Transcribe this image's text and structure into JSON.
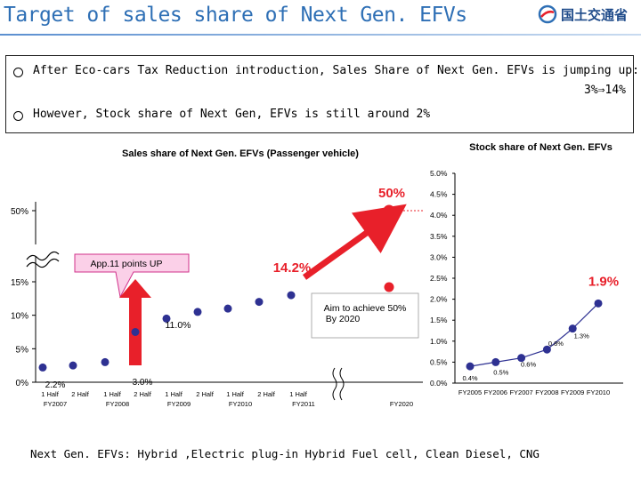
{
  "header": {
    "title": "Target of sales share of Next Gen. EFVs",
    "logo_text": "国土交通省"
  },
  "info": {
    "line1": "After Eco-cars Tax Reduction introduction, Sales Share of Next Gen. EFVs is jumping up:",
    "line1_value": "3%⇒14%",
    "line2": "However, Stock share of Next Gen, EFVs is still around 2%"
  },
  "chart_data": [
    {
      "type": "scatter",
      "title": "Sales share of Next Gen. EFVs (Passenger vehicle)",
      "ylabel": "",
      "y_ticks": [
        "0%",
        "5%",
        "10%",
        "15%",
        "50%"
      ],
      "x_ticks": [
        {
          "half": "1 Half",
          "fy": "FY2007"
        },
        {
          "half": "2 Half",
          "fy": ""
        },
        {
          "half": "1 Half",
          "fy": "FY2008"
        },
        {
          "half": "2 Half",
          "fy": ""
        },
        {
          "half": "1 Half",
          "fy": "FY2009"
        },
        {
          "half": "2 Half",
          "fy": ""
        },
        {
          "half": "1 Half",
          "fy": "FY2010"
        },
        {
          "half": "2 Half",
          "fy": ""
        },
        {
          "half": "1 Half",
          "fy": "FY2011"
        },
        {
          "half": "",
          "fy": "FY2020"
        }
      ],
      "points": [
        2.2,
        2.5,
        3.0,
        7.5,
        9.5,
        10.5,
        11.0,
        12.0,
        13.0,
        14.2
      ],
      "target": 50,
      "labels": {
        "p_first": "2.2%",
        "p_third": "3.0%",
        "p_mid": "11.0%",
        "p_last": "14.2%",
        "target": "50%"
      },
      "annotations": {
        "callout": "App.11 points UP",
        "aim": "Aim to achieve 50% By 2020"
      },
      "colors": {
        "marker": "#2e3192",
        "highlight": "#e8202a",
        "callout_fill": "#fbd0e8",
        "callout_border": "#d0308a"
      }
    },
    {
      "type": "line",
      "title": "Stock share of Next Gen. EFVs",
      "ylabel": "",
      "ylim": [
        0,
        5
      ],
      "y_ticks": [
        "0.0%",
        "0.5%",
        "1.0%",
        "1.5%",
        "2.0%",
        "2.5%",
        "3.0%",
        "3.5%",
        "4.0%",
        "4.5%",
        "5.0%"
      ],
      "categories": [
        "FY2005",
        "FY2006",
        "FY2007",
        "FY2008",
        "FY2009",
        "FY2010"
      ],
      "values": [
        0.4,
        0.5,
        0.6,
        0.8,
        1.3,
        1.9
      ],
      "data_labels": [
        "0.4%",
        "0.5%",
        "0.6%",
        "0.8%",
        "1.3%",
        "1.9%"
      ],
      "colors": {
        "line": "#2e3192",
        "highlight": "#e8202a"
      }
    }
  ],
  "footnote": "Next Gen. EFVs: Hybrid ,Electric plug-in Hybrid Fuel cell, Clean Diesel, CNG"
}
